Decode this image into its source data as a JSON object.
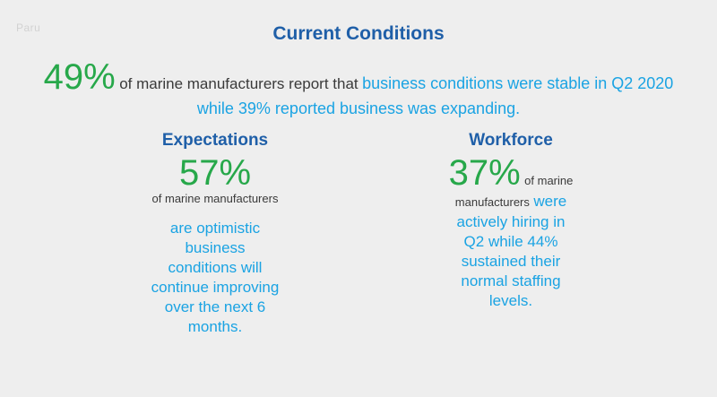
{
  "watermark": "Paru",
  "title": "Current Conditions",
  "headline": {
    "percent": "49%",
    "text_dark": "of marine manufacturers report that",
    "text_blue_1": "business conditions were stable in Q2 2020",
    "text_blue_2": "while 39% reported business was expanding."
  },
  "expectations": {
    "title": "Expectations",
    "percent": "57%",
    "subtext": "of marine manufacturers",
    "lines": [
      "are optimistic",
      "business",
      "conditions will",
      "continue improving",
      "over the next 6",
      "months."
    ]
  },
  "workforce": {
    "title": "Workforce",
    "percent": "37%",
    "subtext_1": "of marine",
    "subtext_2": "manufacturers",
    "lines": [
      "were",
      "actively hiring in",
      "Q2 while 44%",
      "sustained their",
      "normal staffing",
      "levels."
    ]
  },
  "colors": {
    "title_blue": "#1f5fa8",
    "accent_green": "#27a84a",
    "text_blue": "#1aa3e3",
    "text_dark": "#3a3a3a",
    "background": "#eeeeee"
  }
}
